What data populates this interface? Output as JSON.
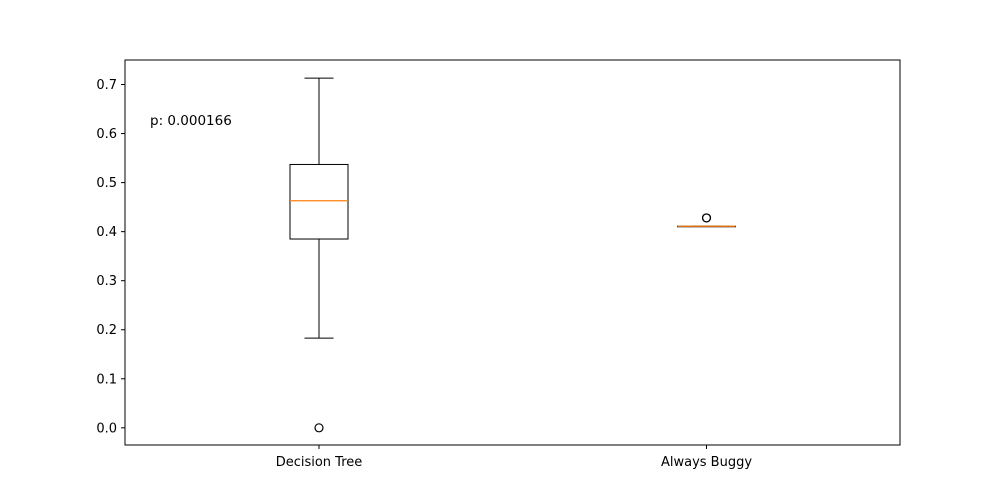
{
  "chart_data": {
    "type": "box",
    "annotation": "p: 0.000166",
    "ylim": [
      -0.035,
      0.75
    ],
    "yticks": [
      "0.0",
      "0.1",
      "0.2",
      "0.3",
      "0.4",
      "0.5",
      "0.6",
      "0.7"
    ],
    "grid": false,
    "categories": [
      "Decision Tree",
      "Always Buggy"
    ],
    "boxes": [
      {
        "label": "Decision Tree",
        "whisker_low": 0.183,
        "q1": 0.385,
        "median": 0.463,
        "q3": 0.537,
        "whisker_high": 0.713,
        "outliers": [
          0.0
        ]
      },
      {
        "label": "Always Buggy",
        "whisker_low": 0.411,
        "q1": 0.411,
        "median": 0.411,
        "q3": 0.411,
        "whisker_high": 0.411,
        "outliers": [
          0.428,
          0.428
        ]
      }
    ],
    "colors": {
      "box": "#000000",
      "median": "#ff7f0e",
      "outlier": "#000000"
    }
  }
}
